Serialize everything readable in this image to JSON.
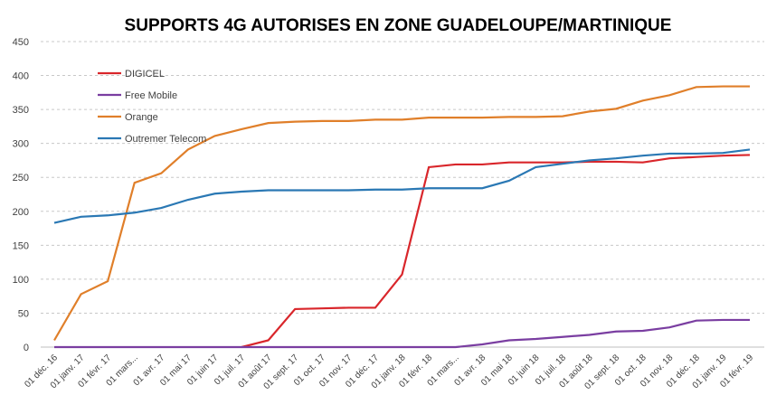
{
  "chart_data": {
    "type": "line",
    "title": "SUPPORTS 4G AUTORISES EN ZONE GUADELOUPE/MARTINIQUE",
    "categories": [
      "01 déc. 16",
      "01 janv. 17",
      "01 févr. 17",
      "01 mars...",
      "01 avr. 17",
      "01 mai 17",
      "01 juin 17",
      "01 juil. 17",
      "01 août 17",
      "01 sept. 17",
      "01 oct. 17",
      "01 nov. 17",
      "01 déc. 17",
      "01 janv. 18",
      "01 févr. 18",
      "01 mars...",
      "01 avr. 18",
      "01 mai 18",
      "01 juin 18",
      "01 juil. 18",
      "01 août 18",
      "01 sept. 18",
      "01 oct. 18",
      "01 nov. 18",
      "01 déc. 18",
      "01 janv. 19",
      "01 févr. 19"
    ],
    "series": [
      {
        "name": "DIGICEL",
        "color": "#d9262b",
        "values": [
          null,
          null,
          null,
          null,
          null,
          null,
          null,
          0,
          10,
          56,
          57,
          58,
          58,
          107,
          265,
          269,
          269,
          272,
          272,
          272,
          273,
          273,
          272,
          278,
          280,
          282,
          283
        ]
      },
      {
        "name": "Free Mobile",
        "color": "#7a3ea1",
        "values": [
          0,
          0,
          0,
          0,
          0,
          0,
          0,
          0,
          0,
          0,
          0,
          0,
          0,
          0,
          0,
          0,
          4,
          10,
          12,
          15,
          18,
          23,
          24,
          29,
          39,
          40,
          40
        ]
      },
      {
        "name": "Orange",
        "color": "#e07f2a",
        "values": [
          10,
          78,
          97,
          242,
          256,
          291,
          311,
          321,
          330,
          332,
          333,
          333,
          335,
          335,
          338,
          338,
          338,
          339,
          339,
          340,
          347,
          351,
          363,
          371,
          383,
          384,
          384
        ]
      },
      {
        "name": "Outremer Telecom",
        "color": "#2a78b4",
        "values": [
          183,
          192,
          194,
          198,
          205,
          217,
          226,
          229,
          231,
          231,
          231,
          231,
          232,
          232,
          234,
          234,
          234,
          245,
          265,
          270,
          275,
          278,
          282,
          285,
          285,
          286,
          291
        ]
      }
    ],
    "ylim": [
      0,
      450
    ],
    "yticks": [
      0,
      50,
      100,
      150,
      200,
      250,
      300,
      350,
      400,
      450
    ],
    "grid": true,
    "legend": "top-left"
  }
}
